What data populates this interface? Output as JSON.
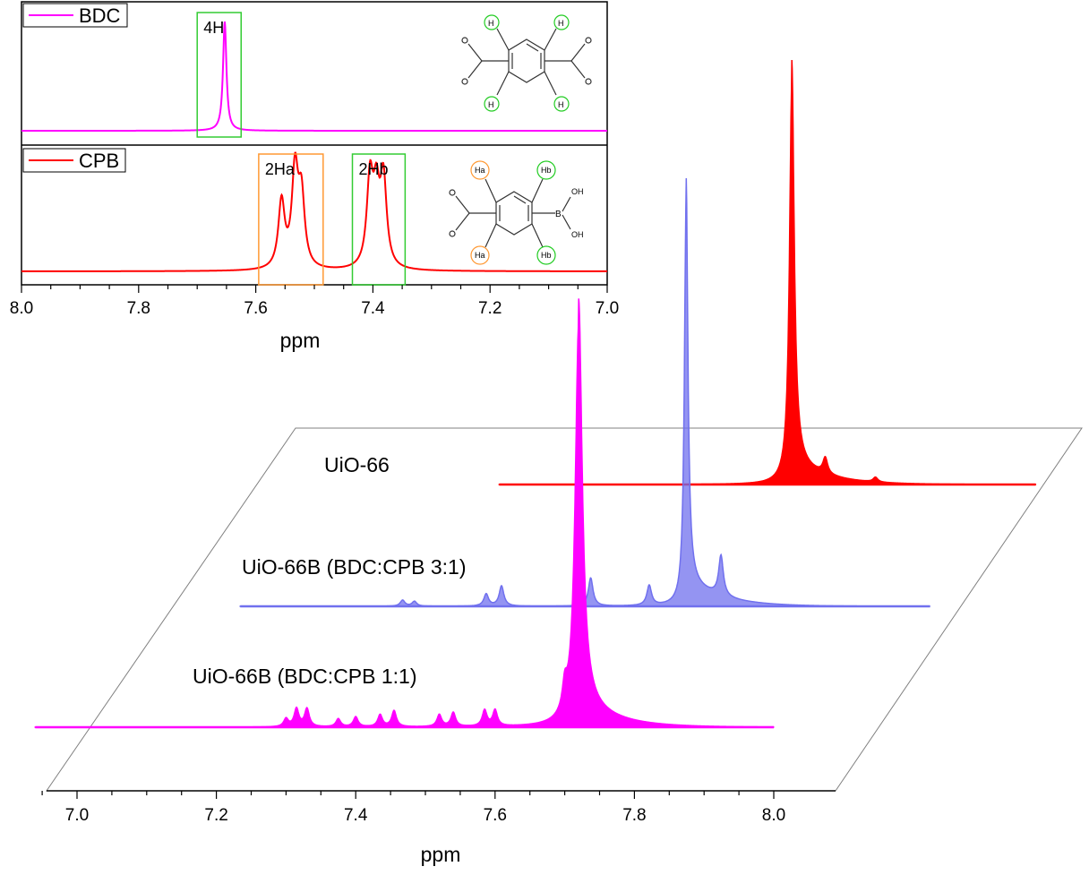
{
  "chart_data": [
    {
      "type": "line",
      "panel": "inset-stacked",
      "xlabel": "ppm",
      "xlim": [
        8.0,
        7.0
      ],
      "x_ticks": [
        "8.0",
        "7.8",
        "7.6",
        "7.4",
        "7.2",
        "7.0"
      ],
      "series": [
        {
          "name": "BDC",
          "color": "#ff00ff",
          "peaks": [
            {
              "x": 7.653,
              "height": 1.0
            }
          ],
          "annotations": [
            {
              "label": "4H",
              "box_color": "#33cc33",
              "x_range": [
                7.7,
                7.625
              ]
            }
          ]
        },
        {
          "name": "CPB",
          "color": "#ff0000",
          "peaks": [
            {
              "x": 7.556,
              "height": 0.58
            },
            {
              "x": 7.533,
              "height": 0.83
            },
            {
              "x": 7.522,
              "height": 0.6
            },
            {
              "x": 7.405,
              "height": 0.75
            },
            {
              "x": 7.394,
              "height": 0.58
            },
            {
              "x": 7.382,
              "height": 0.75
            }
          ],
          "annotations": [
            {
              "label": "2Ha",
              "box_color": "#ff9933",
              "x_range": [
                7.595,
                7.485
              ]
            },
            {
              "label": "2Hb",
              "box_color": "#33cc33",
              "x_range": [
                7.435,
                7.345
              ]
            }
          ]
        }
      ],
      "structures": [
        {
          "series": "BDC",
          "atom_labels": [
            "H",
            "H",
            "H",
            "H"
          ]
        },
        {
          "series": "CPB",
          "atom_labels": [
            "Ha",
            "Hb",
            "Ha",
            "Hb",
            "B",
            "OH",
            "OH"
          ]
        }
      ]
    },
    {
      "type": "line",
      "panel": "3d-waterfall",
      "xlabel": "ppm",
      "xlim": [
        6.95,
        8.07
      ],
      "x_ticks": [
        "7.0",
        "7.2",
        "7.4",
        "7.6",
        "7.8",
        "8.0"
      ],
      "series": [
        {
          "name": "UiO-66",
          "color": "#ff0000",
          "peaks": [
            {
              "x": 7.72,
              "height": 1.0
            },
            {
              "x": 7.768,
              "height": 0.04
            },
            {
              "x": 7.84,
              "height": 0.012
            }
          ]
        },
        {
          "name": "UiO-66B (BDC:CPB 3:1)",
          "color": "#7070ee",
          "peaks": [
            {
              "x": 7.72,
              "height": 1.0
            },
            {
              "x": 7.77,
              "height": 0.1
            },
            {
              "x": 7.667,
              "height": 0.05
            },
            {
              "x": 7.583,
              "height": 0.07
            },
            {
              "x": 7.455,
              "height": 0.05
            },
            {
              "x": 7.433,
              "height": 0.03
            },
            {
              "x": 7.313,
              "height": 0.015
            },
            {
              "x": 7.33,
              "height": 0.012
            }
          ]
        },
        {
          "name": "UiO-66B (BDC:CPB 1:1)",
          "color": "#ff00ff",
          "peaks": [
            {
              "x": 7.72,
              "height": 1.0
            },
            {
              "x": 7.7,
              "height": 0.06
            },
            {
              "x": 7.6,
              "height": 0.04
            },
            {
              "x": 7.585,
              "height": 0.04
            },
            {
              "x": 7.54,
              "height": 0.035
            },
            {
              "x": 7.52,
              "height": 0.03
            },
            {
              "x": 7.455,
              "height": 0.04
            },
            {
              "x": 7.435,
              "height": 0.03
            },
            {
              "x": 7.4,
              "height": 0.025
            },
            {
              "x": 7.375,
              "height": 0.02
            },
            {
              "x": 7.33,
              "height": 0.045
            },
            {
              "x": 7.315,
              "height": 0.045
            },
            {
              "x": 7.3,
              "height": 0.02
            }
          ]
        }
      ]
    }
  ]
}
